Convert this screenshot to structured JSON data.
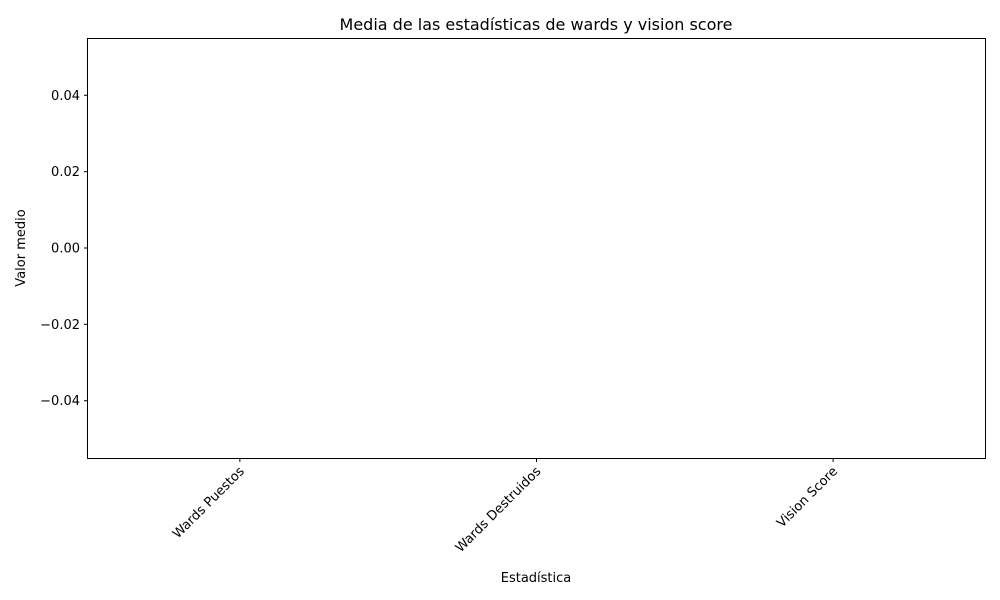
{
  "chart_data": {
    "type": "bar",
    "title": "Media de las estadísticas de wards y vision score",
    "xlabel": "Estadística",
    "ylabel": "Valor medio",
    "categories": [
      "Wards Puestos",
      "Wards Destruidos",
      "Vision Score"
    ],
    "values": [
      0,
      0,
      0
    ],
    "ylim": [
      -0.055,
      0.055
    ],
    "yticks": [
      -0.04,
      -0.02,
      0.0,
      0.02,
      0.04
    ],
    "ytick_labels": [
      "−0.04",
      "−0.02",
      "0.00",
      "0.02",
      "0.04"
    ],
    "xtick_rotation": 45,
    "grid": false,
    "legend": "none"
  }
}
